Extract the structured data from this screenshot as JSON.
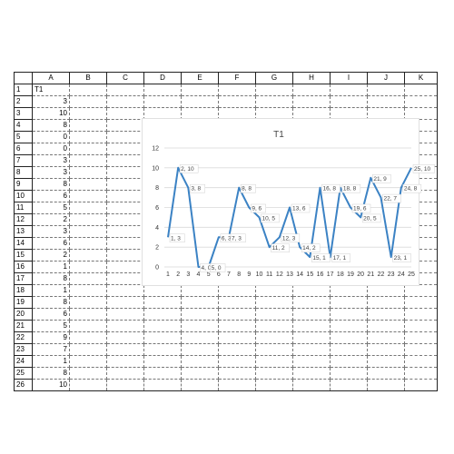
{
  "sheet": {
    "columns": [
      "A",
      "B",
      "C",
      "D",
      "E",
      "F",
      "G",
      "H",
      "I",
      "J",
      "K"
    ],
    "rows": [
      "1",
      "2",
      "3",
      "4",
      "5",
      "6",
      "7",
      "8",
      "9",
      "10",
      "11",
      "12",
      "13",
      "14",
      "15",
      "16",
      "17",
      "18",
      "19",
      "20",
      "21",
      "22",
      "23",
      "24",
      "25",
      "26"
    ],
    "header_cell": "T1",
    "column_a_values": [
      "3",
      "10",
      "8",
      "0",
      "0",
      "3",
      "3",
      "8",
      "6",
      "5",
      "2",
      "3",
      "6",
      "2",
      "1",
      "8",
      "1",
      "8",
      "6",
      "5",
      "9",
      "7",
      "1",
      "8",
      "10"
    ]
  },
  "chart_data": {
    "type": "line",
    "title": "T1",
    "x": [
      1,
      2,
      3,
      4,
      5,
      6,
      7,
      8,
      9,
      10,
      11,
      12,
      13,
      14,
      15,
      16,
      17,
      18,
      19,
      20,
      21,
      22,
      23,
      24,
      25
    ],
    "series": [
      {
        "name": "T1",
        "values": [
          3,
          10,
          8,
          0,
          0,
          3,
          3,
          8,
          6,
          5,
          2,
          3,
          6,
          2,
          1,
          8,
          1,
          8,
          6,
          5,
          9,
          7,
          1,
          8,
          10
        ]
      }
    ],
    "data_labels": [
      "1, 3",
      "2, 10",
      "3, 8",
      "4, 0",
      "5, 0",
      "6, 3",
      "7, 3",
      "8, 8",
      "9, 6",
      "10, 5",
      "11, 2",
      "12, 3",
      "13, 6",
      "14, 2",
      "15, 1",
      "16, 8",
      "17, 1",
      "18, 8",
      "19, 6",
      "20, 5",
      "21, 9",
      "22, 7",
      "23, 1",
      "24, 8",
      "25, 10"
    ],
    "y_ticks": [
      "0",
      "2",
      "4",
      "6",
      "8",
      "10",
      "12"
    ],
    "x_ticks": [
      "1",
      "2",
      "3",
      "4",
      "5",
      "6",
      "7",
      "8",
      "9",
      "10",
      "11",
      "12",
      "13",
      "14",
      "15",
      "16",
      "17",
      "18",
      "19",
      "20",
      "21",
      "22",
      "23",
      "24",
      "25"
    ],
    "ylim": [
      0,
      12
    ],
    "xlim": [
      1,
      25
    ],
    "grid": "horizontal",
    "line_color": "#3b82c4"
  }
}
